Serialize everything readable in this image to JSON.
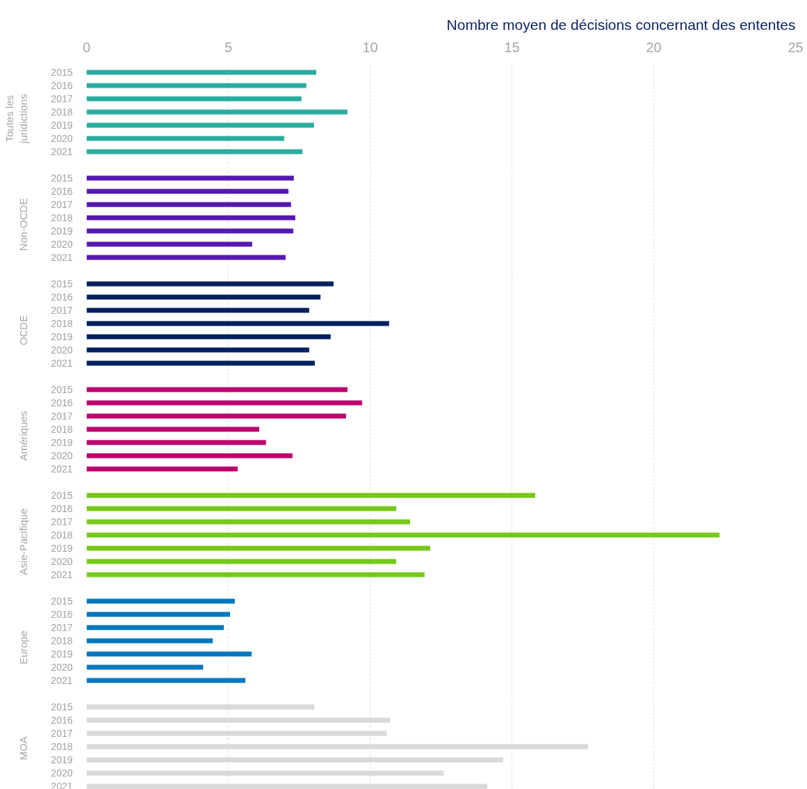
{
  "chart_data": [
    {
      "type": "bar",
      "orientation": "horizontal",
      "xlabel": "Nombre moyen de décisions concernant des ententes",
      "ylabel": "Toutes les\njuridictions",
      "categories": [
        "2015",
        "2016",
        "2017",
        "2018",
        "2019",
        "2020",
        "2021"
      ],
      "values": [
        8.1,
        7.75,
        7.58,
        9.2,
        8.02,
        6.97,
        7.61
      ],
      "color": "#2aaca0",
      "xlim": [
        0,
        25
      ],
      "xticks": [
        0,
        5,
        10,
        15,
        20,
        25
      ],
      "grid": "x"
    },
    {
      "type": "bar",
      "orientation": "horizontal",
      "ylabel": "Non-OCDE",
      "categories": [
        "2015",
        "2016",
        "2017",
        "2018",
        "2019",
        "2020",
        "2021"
      ],
      "values": [
        7.31,
        7.12,
        7.21,
        7.36,
        7.29,
        5.84,
        7.02
      ],
      "color": "#5519b1",
      "xlim": [
        0,
        25
      ],
      "xticks": [
        0,
        5,
        10,
        15,
        20,
        25
      ],
      "grid": "x",
      "tick_labels": "y"
    },
    {
      "type": "bar",
      "orientation": "horizontal",
      "ylabel": "OCDE",
      "categories": [
        "2015",
        "2016",
        "2017",
        "2018",
        "2019",
        "2020",
        "2021"
      ],
      "values": [
        8.71,
        8.25,
        7.85,
        10.67,
        8.61,
        7.85,
        8.05
      ],
      "color": "#00205f",
      "xlim": [
        0,
        25
      ],
      "xticks": [
        0,
        5,
        10,
        15,
        20,
        25
      ],
      "grid": "x",
      "tick_labels": "y"
    },
    {
      "type": "bar",
      "orientation": "horizontal",
      "ylabel": "Amériques",
      "categories": [
        "2015",
        "2016",
        "2017",
        "2018",
        "2019",
        "2020",
        "2021"
      ],
      "values": [
        9.2,
        9.72,
        9.15,
        6.09,
        6.33,
        7.26,
        5.33
      ],
      "color": "#bb006e",
      "xlim": [
        0,
        25
      ],
      "xticks": [
        0,
        5,
        10,
        15,
        20,
        25
      ],
      "grid": "x",
      "tick_labels": "y"
    },
    {
      "type": "bar",
      "orientation": "horizontal",
      "ylabel": "Asie-Pacifique",
      "categories": [
        "2015",
        "2016",
        "2017",
        "2018",
        "2019",
        "2020",
        "2021"
      ],
      "values": [
        15.82,
        10.92,
        11.41,
        22.32,
        12.12,
        10.92,
        11.92
      ],
      "color": "#76c818",
      "xlim": [
        0,
        25
      ],
      "xticks": [
        0,
        5,
        10,
        15,
        20,
        25
      ],
      "grid": "x",
      "tick_labels": "y"
    },
    {
      "type": "bar",
      "orientation": "horizontal",
      "ylabel": "Europe",
      "categories": [
        "2015",
        "2016",
        "2017",
        "2018",
        "2019",
        "2020",
        "2021"
      ],
      "values": [
        5.23,
        5.06,
        4.84,
        4.45,
        5.82,
        4.11,
        5.6
      ],
      "color": "#0078be",
      "xlim": [
        0,
        25
      ],
      "xticks": [
        0,
        5,
        10,
        15,
        20,
        25
      ],
      "grid": "x",
      "tick_labels": "y"
    },
    {
      "type": "bar",
      "orientation": "horizontal",
      "ylabel": "MOA",
      "categories": [
        "2015",
        "2016",
        "2017",
        "2018",
        "2019",
        "2020",
        "2021"
      ],
      "values": [
        8.03,
        10.7,
        10.58,
        17.68,
        14.69,
        12.59,
        14.13
      ],
      "color": "#d9d9d9",
      "xlim": [
        0,
        25
      ],
      "xticks": [
        0,
        5,
        10,
        15,
        20,
        25
      ],
      "grid": "x",
      "tick_labels": "y"
    }
  ]
}
